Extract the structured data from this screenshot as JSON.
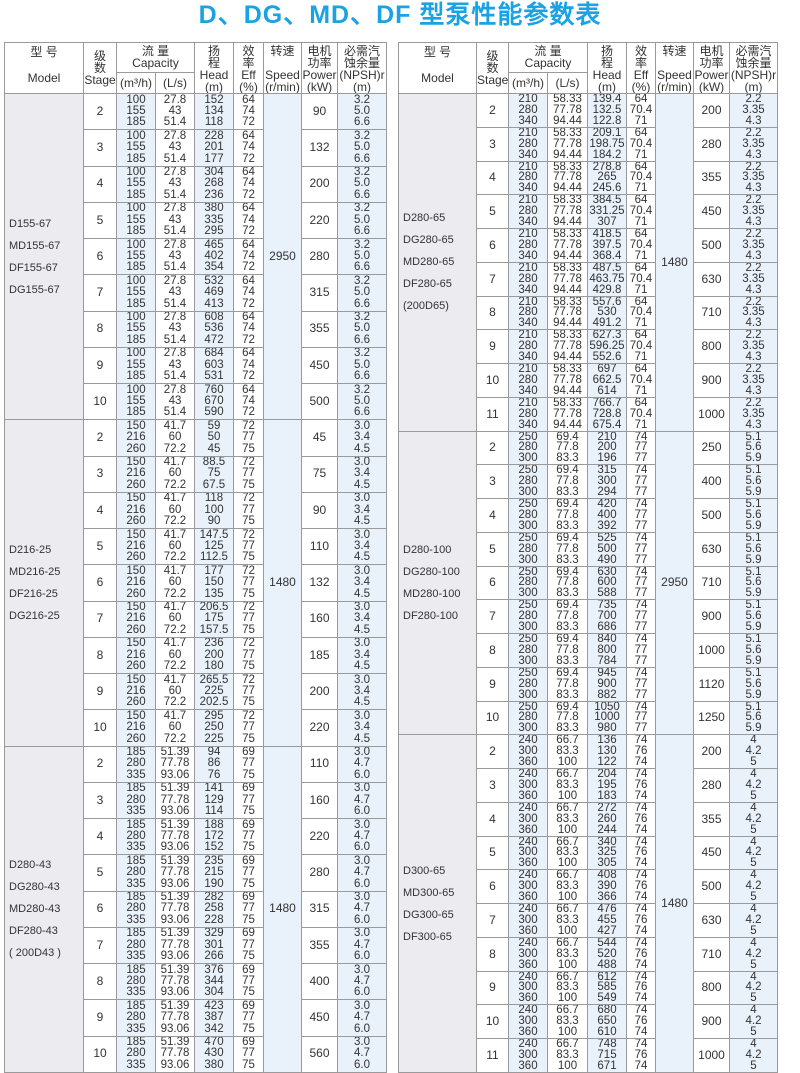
{
  "title": "D、DG、MD、DF 型泵性能参数表",
  "colors": {
    "title": "#1aa3e4",
    "shade": "#e9f1fb",
    "model_bg": "#ecebf0"
  },
  "header": {
    "model": {
      "cn": "型  号",
      "en": "Model"
    },
    "stage": {
      "cn": [
        "级",
        "数"
      ],
      "en": "Stage"
    },
    "capacity": {
      "cn": "流  量",
      "en": "Capacity",
      "sub": [
        "(m³/h)",
        "(L/s)"
      ]
    },
    "head": {
      "cn": [
        "扬",
        "程"
      ],
      "en": "Head",
      "unit": "(m)"
    },
    "eff": {
      "cn": [
        "效",
        "率"
      ],
      "en": "Eff",
      "unit": "(%)"
    },
    "speed": {
      "cn": [
        "转速"
      ],
      "en": "Speed",
      "unit": "(r/min)"
    },
    "power": {
      "cn": [
        "电机",
        "功率"
      ],
      "en": "Power",
      "unit": "(kW)"
    },
    "npsh": {
      "cn": [
        "必需汽",
        "蚀余量"
      ],
      "en": "(NPSH)r",
      "unit": "(m)"
    }
  },
  "tables": [
    {
      "groups": [
        {
          "models": [
            "D155-67",
            "MD155-67",
            "DF155-67",
            "DG155-67"
          ],
          "speed": "2950",
          "flow_m3h": [
            "100",
            "155",
            "185"
          ],
          "flow_ls": [
            "27.8",
            "43",
            "51.4"
          ],
          "eff": [
            "64",
            "74",
            "72"
          ],
          "npsh": [
            "3.2",
            "5.0",
            "6.6"
          ],
          "rows": [
            {
              "stage": "2",
              "head": [
                "152",
                "134",
                "118"
              ],
              "power": "90"
            },
            {
              "stage": "3",
              "head": [
                "228",
                "201",
                "177"
              ],
              "power": "132"
            },
            {
              "stage": "4",
              "head": [
                "304",
                "268",
                "236"
              ],
              "power": "200"
            },
            {
              "stage": "5",
              "head": [
                "380",
                "335",
                "295"
              ],
              "power": "220"
            },
            {
              "stage": "6",
              "head": [
                "465",
                "402",
                "354"
              ],
              "power": "280"
            },
            {
              "stage": "7",
              "head": [
                "532",
                "469",
                "413"
              ],
              "power": "315"
            },
            {
              "stage": "8",
              "head": [
                "608",
                "536",
                "472"
              ],
              "power": "355"
            },
            {
              "stage": "9",
              "head": [
                "684",
                "603",
                "531"
              ],
              "power": "450"
            },
            {
              "stage": "10",
              "head": [
                "760",
                "670",
                "590"
              ],
              "power": "500"
            }
          ]
        },
        {
          "models": [
            "D216-25",
            "MD216-25",
            "DF216-25",
            "DG216-25"
          ],
          "speed": "1480",
          "flow_m3h": [
            "150",
            "216",
            "260"
          ],
          "flow_ls": [
            "41.7",
            "60",
            "72.2"
          ],
          "eff": [
            "72",
            "77",
            "75"
          ],
          "npsh": [
            "3.0",
            "3.4",
            "4.5"
          ],
          "rows": [
            {
              "stage": "2",
              "head": [
                "59",
                "50",
                "45"
              ],
              "power": "45"
            },
            {
              "stage": "3",
              "head": [
                "88.5",
                "75",
                "67.5"
              ],
              "power": "75"
            },
            {
              "stage": "4",
              "head": [
                "118",
                "100",
                "90"
              ],
              "power": "90"
            },
            {
              "stage": "5",
              "head": [
                "147.5",
                "125",
                "112.5"
              ],
              "power": "110"
            },
            {
              "stage": "6",
              "head": [
                "177",
                "150",
                "135"
              ],
              "power": "132"
            },
            {
              "stage": "7",
              "head": [
                "206.5",
                "175",
                "157.5"
              ],
              "power": "160"
            },
            {
              "stage": "8",
              "head": [
                "236",
                "200",
                "180"
              ],
              "power": "185"
            },
            {
              "stage": "9",
              "head": [
                "265.5",
                "225",
                "202.5"
              ],
              "power": "200"
            },
            {
              "stage": "10",
              "head": [
                "295",
                "250",
                "225"
              ],
              "power": "220"
            }
          ]
        },
        {
          "models": [
            "D280-43",
            "DG280-43",
            "MD280-43",
            "DF280-43",
            "( 200D43 )"
          ],
          "speed": "1480",
          "flow_m3h": [
            "185",
            "280",
            "335"
          ],
          "flow_ls": [
            "51.39",
            "77.78",
            "93.06"
          ],
          "eff": [
            "69",
            "77",
            "75"
          ],
          "npsh": [
            "3.0",
            "4.7",
            "6.0"
          ],
          "rows": [
            {
              "stage": "2",
              "head": [
                "94",
                "86",
                "76"
              ],
              "power": "110"
            },
            {
              "stage": "3",
              "head": [
                "141",
                "129",
                "114"
              ],
              "power": "160"
            },
            {
              "stage": "4",
              "head": [
                "188",
                "172",
                "152"
              ],
              "power": "220"
            },
            {
              "stage": "5",
              "head": [
                "235",
                "215",
                "190"
              ],
              "power": "280"
            },
            {
              "stage": "6",
              "head": [
                "282",
                "258",
                "228"
              ],
              "power": "315"
            },
            {
              "stage": "7",
              "head": [
                "329",
                "301",
                "266"
              ],
              "power": "355"
            },
            {
              "stage": "8",
              "head": [
                "376",
                "344",
                "304"
              ],
              "power": "400"
            },
            {
              "stage": "9",
              "head": [
                "423",
                "387",
                "342"
              ],
              "power": "450"
            },
            {
              "stage": "10",
              "head": [
                "470",
                "430",
                "380"
              ],
              "power": "560"
            }
          ]
        }
      ]
    },
    {
      "groups": [
        {
          "models": [
            "D280-65",
            "DG280-65",
            "MD280-65",
            "DF280-65",
            "(200D65)"
          ],
          "speed": "1480",
          "flow_m3h": [
            "210",
            "280",
            "340"
          ],
          "flow_ls": [
            "58.33",
            "77.78",
            "94.44"
          ],
          "eff": [
            "64",
            "70.4",
            "71"
          ],
          "npsh": [
            "2.2",
            "3.35",
            "4.3"
          ],
          "rows": [
            {
              "stage": "2",
              "head": [
                "139.4",
                "132.5",
                "122.8"
              ],
              "power": "200"
            },
            {
              "stage": "3",
              "head": [
                "209.1",
                "198.75",
                "184.2"
              ],
              "power": "280"
            },
            {
              "stage": "4",
              "head": [
                "278.8",
                "265",
                "245.6"
              ],
              "power": "355"
            },
            {
              "stage": "5",
              "head": [
                "384.5",
                "331.25",
                "307"
              ],
              "power": "450"
            },
            {
              "stage": "6",
              "head": [
                "418.5",
                "397.5",
                "368.4"
              ],
              "power": "500"
            },
            {
              "stage": "7",
              "head": [
                "487.5",
                "463.75",
                "429.8"
              ],
              "power": "630"
            },
            {
              "stage": "8",
              "head": [
                "557.6",
                "530",
                "491.2"
              ],
              "power": "710"
            },
            {
              "stage": "9",
              "head": [
                "627.3",
                "596.25",
                "552.6"
              ],
              "power": "800"
            },
            {
              "stage": "10",
              "head": [
                "697",
                "662.5",
                "614"
              ],
              "power": "900"
            },
            {
              "stage": "11",
              "head": [
                "766.7",
                "728.8",
                "675.4"
              ],
              "power": "1000"
            }
          ]
        },
        {
          "models": [
            "D280-100",
            "DG280-100",
            "MD280-100",
            "DF280-100"
          ],
          "speed": "2950",
          "flow_m3h": [
            "250",
            "280",
            "300"
          ],
          "flow_ls": [
            "69.4",
            "77.8",
            "83.3"
          ],
          "eff": [
            "74",
            "77",
            "77"
          ],
          "npsh": [
            "5.1",
            "5.6",
            "5.9"
          ],
          "rows": [
            {
              "stage": "2",
              "head": [
                "210",
                "200",
                "196"
              ],
              "power": "250"
            },
            {
              "stage": "3",
              "head": [
                "315",
                "300",
                "294"
              ],
              "power": "400"
            },
            {
              "stage": "4",
              "head": [
                "420",
                "400",
                "392"
              ],
              "power": "500"
            },
            {
              "stage": "5",
              "head": [
                "525",
                "500",
                "490"
              ],
              "power": "630"
            },
            {
              "stage": "6",
              "head": [
                "630",
                "600",
                "588"
              ],
              "power": "710"
            },
            {
              "stage": "7",
              "head": [
                "735",
                "700",
                "686"
              ],
              "power": "900"
            },
            {
              "stage": "8",
              "head": [
                "840",
                "800",
                "784"
              ],
              "power": "1000"
            },
            {
              "stage": "9",
              "head": [
                "945",
                "900",
                "882"
              ],
              "power": "1120"
            },
            {
              "stage": "10",
              "head": [
                "1050",
                "1000",
                "980"
              ],
              "power": "1250"
            }
          ]
        },
        {
          "models": [
            "D300-65",
            "MD300-65",
            "DG300-65",
            "DF300-65"
          ],
          "speed": "1480",
          "flow_m3h": [
            "240",
            "300",
            "360"
          ],
          "flow_ls": [
            "66.7",
            "83.3",
            "100"
          ],
          "eff": [
            "74",
            "76",
            "74"
          ],
          "npsh": [
            "4",
            "4.2",
            "5"
          ],
          "rows": [
            {
              "stage": "2",
              "head": [
                "136",
                "130",
                "122"
              ],
              "power": "200"
            },
            {
              "stage": "3",
              "head": [
                "204",
                "195",
                "183"
              ],
              "power": "280"
            },
            {
              "stage": "4",
              "head": [
                "272",
                "260",
                "244"
              ],
              "power": "355"
            },
            {
              "stage": "5",
              "head": [
                "340",
                "325",
                "305"
              ],
              "power": "450"
            },
            {
              "stage": "6",
              "head": [
                "408",
                "390",
                "366"
              ],
              "power": "500"
            },
            {
              "stage": "7",
              "head": [
                "476",
                "455",
                "427"
              ],
              "power": "630"
            },
            {
              "stage": "8",
              "head": [
                "544",
                "520",
                "488"
              ],
              "power": "710"
            },
            {
              "stage": "9",
              "head": [
                "612",
                "585",
                "549"
              ],
              "power": "800"
            },
            {
              "stage": "10",
              "head": [
                "680",
                "650",
                "610"
              ],
              "power": "900"
            },
            {
              "stage": "11",
              "head": [
                "748",
                "715",
                "671"
              ],
              "power": "1000"
            }
          ]
        }
      ]
    }
  ]
}
